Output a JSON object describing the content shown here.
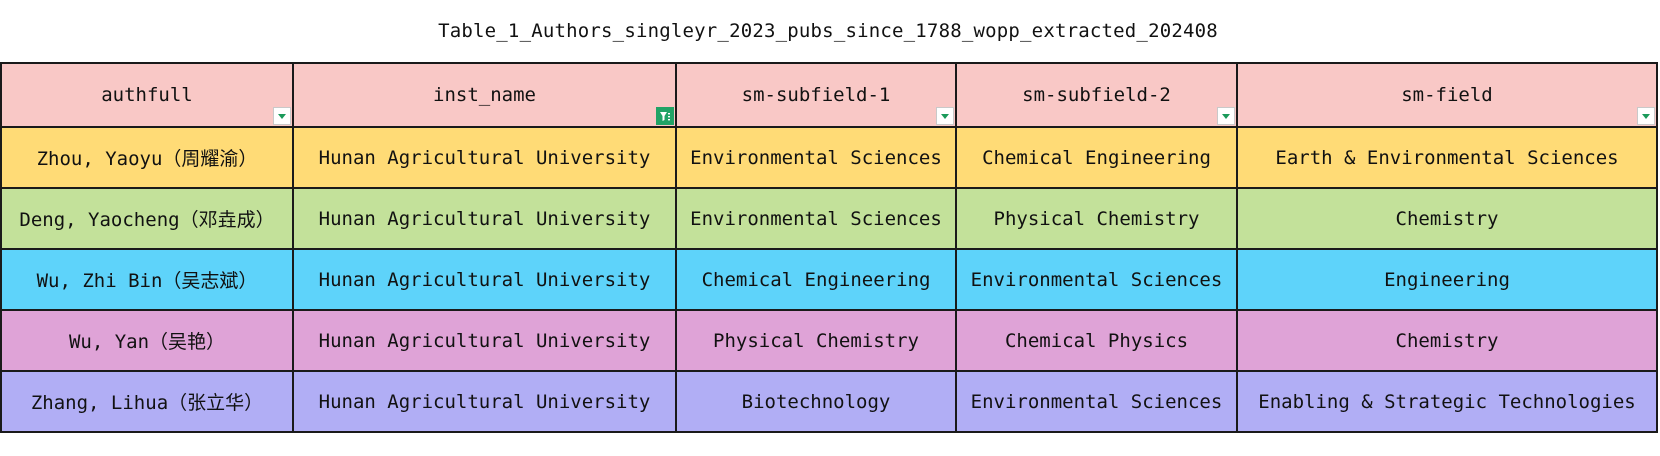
{
  "title": "Table_1_Authors_singleyr_2023_pubs_since_1788_wopp_extracted_202408",
  "columns": [
    {
      "key": "authfull",
      "label": "authfull",
      "filter_active": false
    },
    {
      "key": "inst_name",
      "label": "inst_name",
      "filter_active": true
    },
    {
      "key": "sm_subfield_1",
      "label": "sm-subfield-1",
      "filter_active": false
    },
    {
      "key": "sm_subfield_2",
      "label": "sm-subfield-2",
      "filter_active": false
    },
    {
      "key": "sm_field",
      "label": "sm-field",
      "filter_active": false
    }
  ],
  "rows": [
    {
      "fill": "#ffdb76",
      "cells": [
        "Zhou, Yaoyu（周耀渝）",
        "Hunan Agricultural University",
        "Environmental Sciences",
        "Chemical Engineering",
        "Earth & Environmental Sciences"
      ]
    },
    {
      "fill": "#c3e19a",
      "cells": [
        "Deng, Yaocheng（邓垚成）",
        "Hunan Agricultural University",
        "Environmental Sciences",
        "Physical Chemistry",
        "Chemistry"
      ]
    },
    {
      "fill": "#5ed3fa",
      "cells": [
        "Wu, Zhi Bin（吴志斌）",
        "Hunan Agricultural University",
        "Chemical Engineering",
        "Environmental Sciences",
        "Engineering"
      ]
    },
    {
      "fill": "#dfa3d7",
      "cells": [
        "Wu, Yan（吴艳）",
        "Hunan Agricultural University",
        "Physical Chemistry",
        "Chemical Physics",
        "Chemistry"
      ]
    },
    {
      "fill": "#b1aef5",
      "cells": [
        "Zhang, Lihua（张立华）",
        "Hunan Agricultural University",
        "Biotechnology",
        "Environmental Sciences",
        "Enabling & Strategic Technologies"
      ]
    }
  ],
  "colors": {
    "header_fill": "#f9c8c6",
    "filter_active": "#21a366",
    "grid_line": "#1a1a1a"
  },
  "icons": {
    "filter_dropdown": "filter-dropdown-icon",
    "filter_applied": "filter-applied-icon"
  }
}
